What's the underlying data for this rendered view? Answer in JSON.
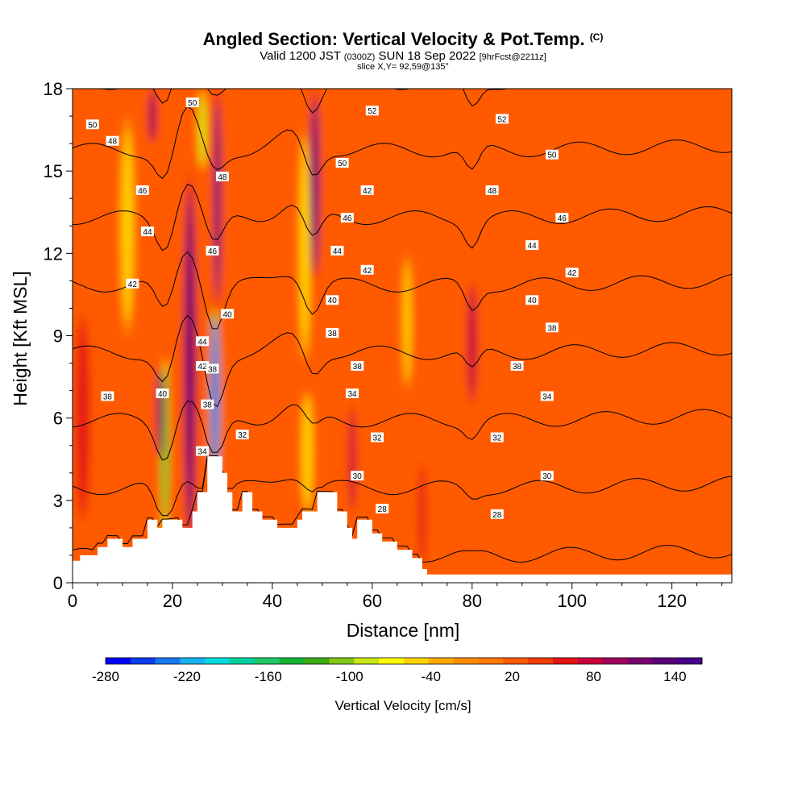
{
  "chart_data": {
    "type": "heatmap",
    "title": "Angled Section: Vertical Velocity & Pot.Temp.",
    "title_mark": "(C)",
    "subtitle": {
      "valid": "Valid 1200 JST",
      "utc": "(0300Z)",
      "date": "SUN 18 Sep 2022",
      "forecast": "[9hrFcst@2211z]"
    },
    "slice_label": "slice X,Y= 92,59@135°",
    "xlabel": "Distance [nm]",
    "ylabel": "Height [Kft MSL]",
    "xlim": [
      0,
      132
    ],
    "ylim": [
      0,
      18
    ],
    "x_ticks": [
      "0",
      "20",
      "40",
      "60",
      "80",
      "100",
      "120"
    ],
    "y_ticks": [
      "0",
      "3",
      "6",
      "9",
      "12",
      "15",
      "18"
    ],
    "background_velocity": 15,
    "velocity_features": [
      {
        "x": 18.5,
        "z0": 1.8,
        "z1": 8.2,
        "w": 0.9,
        "v": -140
      },
      {
        "x": 17.5,
        "z0": 4.5,
        "z1": 8.0,
        "w": 0.7,
        "v": 120
      },
      {
        "x": 23.5,
        "z0": 1.2,
        "z1": 15.0,
        "w": 1.4,
        "v": 110
      },
      {
        "x": 28.5,
        "z0": 3.5,
        "z1": 10.0,
        "w": 1.0,
        "v": -260
      },
      {
        "x": 29.0,
        "z0": 10.0,
        "z1": 18.0,
        "w": 0.8,
        "v": 130
      },
      {
        "x": 26.0,
        "z0": 15.0,
        "z1": 18.0,
        "w": 1.0,
        "v": -80
      },
      {
        "x": 16.0,
        "z0": 16.0,
        "z1": 18.0,
        "w": 1.0,
        "v": 100
      },
      {
        "x": 11.0,
        "z0": 9.0,
        "z1": 17.0,
        "w": 1.6,
        "v": -50
      },
      {
        "x": 47.0,
        "z0": 2.5,
        "z1": 7.0,
        "w": 1.2,
        "v": -60
      },
      {
        "x": 48.5,
        "z0": 11.0,
        "z1": 18.0,
        "w": 1.0,
        "v": 130
      },
      {
        "x": 46.5,
        "z0": 8.0,
        "z1": 16.5,
        "w": 1.2,
        "v": -60
      },
      {
        "x": 56.0,
        "z0": 2.5,
        "z1": 6.5,
        "w": 0.9,
        "v": 75
      },
      {
        "x": 67.0,
        "z0": 7.0,
        "z1": 12.0,
        "w": 1.0,
        "v": -50
      },
      {
        "x": 80.0,
        "z0": 6.5,
        "z1": 11.0,
        "w": 1.1,
        "v": 85
      },
      {
        "x": 70.0,
        "z0": 0.5,
        "z1": 4.5,
        "w": 1.0,
        "v": 50
      },
      {
        "x": 2.0,
        "z0": 2.0,
        "z1": 10.0,
        "w": 2.0,
        "v": 50
      }
    ],
    "terrain": [
      [
        0,
        0.8
      ],
      [
        1.5,
        0.8
      ],
      [
        1.5,
        1.0
      ],
      [
        5,
        1.0
      ],
      [
        5,
        1.3
      ],
      [
        7,
        1.3
      ],
      [
        7,
        1.6
      ],
      [
        10,
        1.6
      ],
      [
        10,
        1.3
      ],
      [
        12,
        1.3
      ],
      [
        12,
        1.6
      ],
      [
        15,
        1.6
      ],
      [
        15,
        2.3
      ],
      [
        17,
        2.3
      ],
      [
        17,
        2.0
      ],
      [
        18,
        2.0
      ],
      [
        18,
        2.3
      ],
      [
        22,
        2.3
      ],
      [
        22,
        2.0
      ],
      [
        24,
        2.0
      ],
      [
        24,
        2.6
      ],
      [
        25,
        2.6
      ],
      [
        25,
        3.3
      ],
      [
        27,
        3.3
      ],
      [
        27,
        4.6
      ],
      [
        30,
        4.6
      ],
      [
        30,
        4.0
      ],
      [
        31,
        4.0
      ],
      [
        31,
        3.3
      ],
      [
        32,
        3.3
      ],
      [
        32,
        2.6
      ],
      [
        34,
        2.6
      ],
      [
        34,
        3.3
      ],
      [
        36,
        3.3
      ],
      [
        36,
        2.6
      ],
      [
        38,
        2.6
      ],
      [
        38,
        2.3
      ],
      [
        41,
        2.3
      ],
      [
        41,
        2.0
      ],
      [
        45,
        2.0
      ],
      [
        45,
        2.3
      ],
      [
        46,
        2.3
      ],
      [
        46,
        2.6
      ],
      [
        49,
        2.6
      ],
      [
        49,
        3.3
      ],
      [
        53,
        3.3
      ],
      [
        53,
        2.6
      ],
      [
        55,
        2.6
      ],
      [
        55,
        2.0
      ],
      [
        56,
        2.0
      ],
      [
        56,
        1.6
      ],
      [
        57,
        1.6
      ],
      [
        57,
        2.3
      ],
      [
        60,
        2.3
      ],
      [
        60,
        1.8
      ],
      [
        62,
        1.8
      ],
      [
        62,
        1.5
      ],
      [
        65,
        1.5
      ],
      [
        65,
        1.2
      ],
      [
        68,
        1.2
      ],
      [
        68,
        0.9
      ],
      [
        70,
        0.9
      ],
      [
        70,
        0.5
      ],
      [
        71,
        0.5
      ],
      [
        71,
        0.3
      ],
      [
        132,
        0.3
      ]
    ],
    "contour_levels": [
      26,
      28,
      30,
      32,
      34,
      36,
      38,
      40,
      42,
      44,
      46,
      48,
      50,
      52,
      54
    ],
    "contour_labels": [
      {
        "text": "50",
        "x": 24,
        "z": 17.5
      },
      {
        "text": "52",
        "x": 60,
        "z": 17.2
      },
      {
        "text": "52",
        "x": 86,
        "z": 16.9
      },
      {
        "text": "50",
        "x": 4,
        "z": 16.7
      },
      {
        "text": "48",
        "x": 8,
        "z": 16.1
      },
      {
        "text": "50",
        "x": 54,
        "z": 15.3
      },
      {
        "text": "50",
        "x": 96,
        "z": 15.6
      },
      {
        "text": "48",
        "x": 30,
        "z": 14.8
      },
      {
        "text": "46",
        "x": 14,
        "z": 14.3
      },
      {
        "text": "42",
        "x": 59,
        "z": 14.3
      },
      {
        "text": "48",
        "x": 84,
        "z": 14.3
      },
      {
        "text": "46",
        "x": 55,
        "z": 13.3
      },
      {
        "text": "46",
        "x": 98,
        "z": 13.3
      },
      {
        "text": "44",
        "x": 15,
        "z": 12.8
      },
      {
        "text": "46",
        "x": 28,
        "z": 12.1
      },
      {
        "text": "44",
        "x": 53,
        "z": 12.1
      },
      {
        "text": "44",
        "x": 92,
        "z": 12.3
      },
      {
        "text": "42",
        "x": 12,
        "z": 10.9
      },
      {
        "text": "42",
        "x": 59,
        "z": 11.4
      },
      {
        "text": "42",
        "x": 100,
        "z": 11.3
      },
      {
        "text": "40",
        "x": 31,
        "z": 9.8
      },
      {
        "text": "40",
        "x": 52,
        "z": 10.3
      },
      {
        "text": "40",
        "x": 92,
        "z": 10.3
      },
      {
        "text": "38",
        "x": 52,
        "z": 9.1
      },
      {
        "text": "38",
        "x": 96,
        "z": 9.3
      },
      {
        "text": "44",
        "x": 26,
        "z": 8.8
      },
      {
        "text": "42",
        "x": 26,
        "z": 7.9
      },
      {
        "text": "38",
        "x": 28,
        "z": 7.8
      },
      {
        "text": "38",
        "x": 57,
        "z": 7.9
      },
      {
        "text": "38",
        "x": 89,
        "z": 7.9
      },
      {
        "text": "40",
        "x": 18,
        "z": 6.9
      },
      {
        "text": "38",
        "x": 7,
        "z": 6.8
      },
      {
        "text": "34",
        "x": 56,
        "z": 6.9
      },
      {
        "text": "34",
        "x": 95,
        "z": 6.8
      },
      {
        "text": "38",
        "x": 27,
        "z": 6.5
      },
      {
        "text": "32",
        "x": 34,
        "z": 5.4
      },
      {
        "text": "32",
        "x": 61,
        "z": 5.3
      },
      {
        "text": "32",
        "x": 85,
        "z": 5.3
      },
      {
        "text": "34",
        "x": 26,
        "z": 4.8
      },
      {
        "text": "30",
        "x": 57,
        "z": 3.9
      },
      {
        "text": "30",
        "x": 95,
        "z": 3.9
      },
      {
        "text": "28",
        "x": 62,
        "z": 2.7
      },
      {
        "text": "28",
        "x": 85,
        "z": 2.5
      }
    ],
    "colorbar": {
      "label": "Vertical Velocity [cm/s]",
      "tick_labels": [
        "-280",
        "-220",
        "-160",
        "-100",
        "-40",
        "20",
        "80",
        "140"
      ],
      "tick_values": [
        -280,
        -220,
        -160,
        -100,
        -40,
        20,
        80,
        140
      ],
      "min": -280,
      "max": 160,
      "colors": [
        "#0000ff",
        "#0a3cf0",
        "#1478f0",
        "#14b4f0",
        "#00dcdc",
        "#00d2a0",
        "#1ec864",
        "#14b432",
        "#3caa14",
        "#82c814",
        "#c8e614",
        "#ffff00",
        "#ffd200",
        "#ffaa00",
        "#ff8c00",
        "#ff7800",
        "#ff5a00",
        "#f03c00",
        "#e61414",
        "#c8003c",
        "#a0005a",
        "#78006e",
        "#5a0078",
        "#46008c"
      ]
    }
  }
}
